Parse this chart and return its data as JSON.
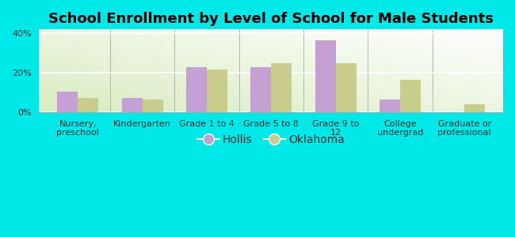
{
  "title": "School Enrollment by Level of School for Male Students",
  "categories": [
    "Nursery,\npreschool",
    "Kindergarten",
    "Grade 1 to 4",
    "Grade 5 to 8",
    "Grade 9 to\n12",
    "College\nundergrad",
    "Graduate or\nprofessional"
  ],
  "hollis_values": [
    10.5,
    7.0,
    23.0,
    23.0,
    36.5,
    6.5,
    0
  ],
  "oklahoma_values": [
    7.0,
    6.5,
    21.5,
    25.0,
    25.0,
    16.5,
    4.0
  ],
  "hollis_color": "#c4a0d4",
  "oklahoma_color": "#c8cc8c",
  "bg_outer": "#00e8e8",
  "yticks": [
    0,
    20,
    40
  ],
  "ytick_labels": [
    "0%",
    "20%",
    "40%"
  ],
  "ylim": [
    0,
    42
  ],
  "legend_labels": [
    "Hollis",
    "Oklahoma"
  ],
  "title_fontsize": 13,
  "axis_fontsize": 8,
  "legend_fontsize": 10,
  "bar_width": 0.32
}
